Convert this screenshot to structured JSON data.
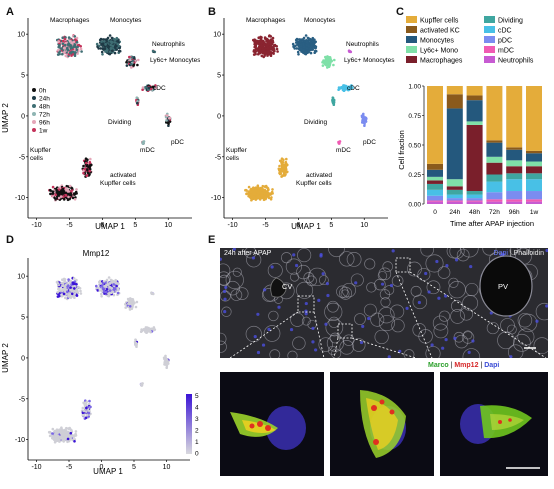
{
  "panel_labels": {
    "a": "A",
    "b": "B",
    "c": "C",
    "d": "D",
    "e": "E"
  },
  "umap": {
    "xlabel": "UMAP 1",
    "ylabel": "UMAP 2",
    "xticks": [
      "-10",
      "-5",
      "0",
      "5",
      "10"
    ],
    "yticks": [
      "10",
      "5",
      "0",
      "-5",
      "-10"
    ],
    "cluster_labels": {
      "macrophages": "Macrophages",
      "monocytes": "Monocytes",
      "neutrophils": "Neutrophils",
      "ly6c": "Ly6c+ Monocytes",
      "cdc": "cDC",
      "dividing": "Dividing",
      "pdc": "pDC",
      "mdc": "mDC",
      "kupffer": "Kupffer cells",
      "akc": "activated Kupffer cells"
    }
  },
  "panelA_legend": [
    {
      "label": "0h",
      "color": "#111111"
    },
    {
      "label": "24h",
      "color": "#1f3a46"
    },
    {
      "label": "48h",
      "color": "#3f6f74"
    },
    {
      "label": "72h",
      "color": "#8fb5b3"
    },
    {
      "label": "96h",
      "color": "#e4a6b8"
    },
    {
      "label": "1w",
      "color": "#c4325a"
    }
  ],
  "chart_data": {
    "type": "bar",
    "stacked": true,
    "ylabel": "Cell fraction",
    "xlabel": "Time after APAP injection",
    "ylim": [
      0,
      1
    ],
    "yticks": [
      "0.00",
      "0.25",
      "0.50",
      "0.75",
      "1.00"
    ],
    "categories": [
      "0",
      "24h",
      "48h",
      "72h",
      "96h",
      "1w"
    ],
    "series": [
      {
        "name": "Neutrophils",
        "color": "#c75bd2",
        "values": [
          0.02,
          0.02,
          0.02,
          0.02,
          0.02,
          0.02
        ]
      },
      {
        "name": "mDC",
        "color": "#f05bb3",
        "values": [
          0.01,
          0.01,
          0.01,
          0.02,
          0.02,
          0.02
        ]
      },
      {
        "name": "pDC",
        "color": "#7b8cf0",
        "values": [
          0.04,
          0.02,
          0.02,
          0.06,
          0.07,
          0.07
        ]
      },
      {
        "name": "cDC",
        "color": "#48c0e6",
        "values": [
          0.05,
          0.03,
          0.03,
          0.09,
          0.1,
          0.1
        ]
      },
      {
        "name": "Dividing",
        "color": "#3fa6a0",
        "values": [
          0.05,
          0.04,
          0.03,
          0.06,
          0.05,
          0.05
        ]
      },
      {
        "name": "Macrophages",
        "color": "#7a1f2b",
        "values": [
          0.03,
          0.03,
          0.56,
          0.1,
          0.06,
          0.06
        ]
      },
      {
        "name": "Ly6c+ Mono",
        "color": "#7fe0a8",
        "values": [
          0.03,
          0.06,
          0.03,
          0.05,
          0.05,
          0.04
        ]
      },
      {
        "name": "Monocytes",
        "color": "#24587d",
        "values": [
          0.06,
          0.6,
          0.18,
          0.12,
          0.09,
          0.07
        ]
      },
      {
        "name": "activated KC",
        "color": "#8a5a1c",
        "values": [
          0.05,
          0.12,
          0.04,
          0.02,
          0.02,
          0.02
        ]
      },
      {
        "name": "Kupffer cells",
        "color": "#e4ac3a",
        "values": [
          0.66,
          0.07,
          0.08,
          0.46,
          0.52,
          0.55
        ]
      }
    ],
    "legend_order": [
      "Kupffer cells",
      "Dividing",
      "activated KC",
      "cDC",
      "Monocytes",
      "pDC",
      "Ly6c+ Mono",
      "mDC",
      "Macrophages",
      "Neutrophils"
    ]
  },
  "panelD": {
    "title": "Mmp12",
    "scale_ticks": [
      "5",
      "4",
      "3",
      "2",
      "1",
      "0"
    ]
  },
  "panelE": {
    "top_title": "24h after APAP",
    "stain_top": {
      "dapi": "Dapi",
      "sep": " | ",
      "phalloidin": "Phalloidin"
    },
    "cv": "CV",
    "pv": "PV",
    "stain_bottom": {
      "marco": "Marco",
      "sep1": " | ",
      "mmp12": "Mmp12",
      "sep2": " | ",
      "dapi": "Dapi"
    }
  }
}
